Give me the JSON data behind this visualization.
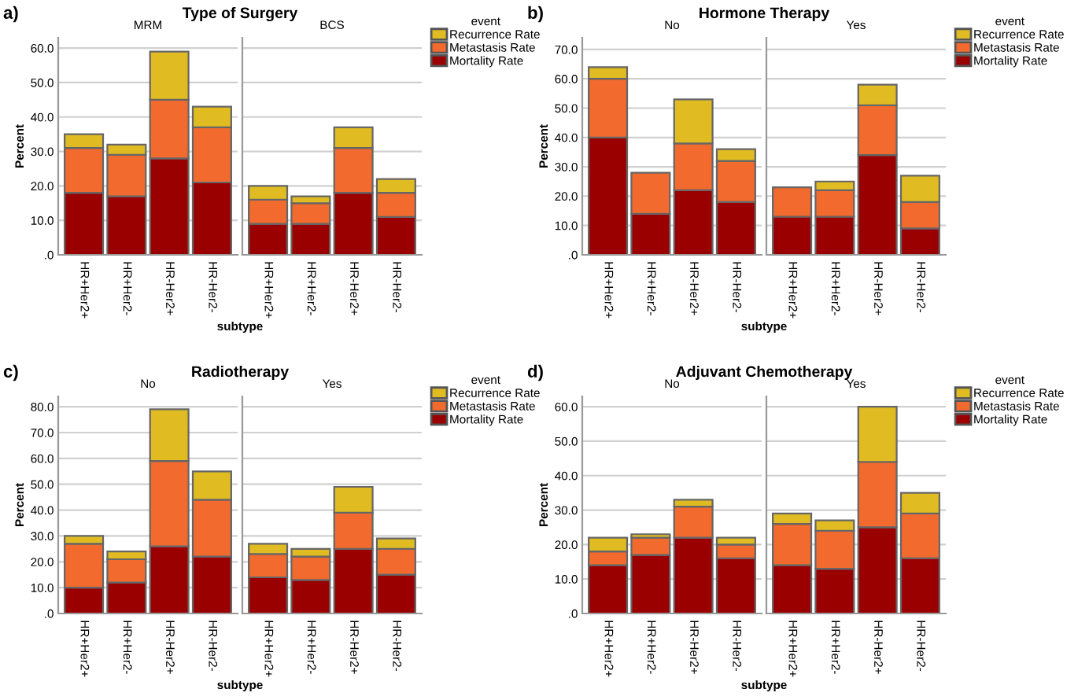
{
  "chart_data": [
    {
      "type": "bar",
      "stacked": true,
      "legend": "right",
      "legend_title": "event",
      "title": "Type of Surgery",
      "subtitle": "MRM",
      "xlabel": "subtype",
      "ylabel": "Percent",
      "annotations": [
        "a)"
      ],
      "categories": [
        "HR+Her2+",
        "HR+Her2-",
        "HR-Her2+",
        "HR-Her2-"
      ],
      "ylim": [
        0,
        63
      ],
      "yticks": [
        {
          "value": 0,
          "label": ".0"
        },
        {
          "value": 10,
          "label": "10.0"
        },
        {
          "value": 20,
          "label": "20.0"
        },
        {
          "value": 30,
          "label": "30.0"
        },
        {
          "value": 40,
          "label": "40.0"
        },
        {
          "value": 50,
          "label": "50.0"
        },
        {
          "value": 60,
          "label": "60.0"
        }
      ],
      "grid": "y",
      "series": [
        {
          "name": "Mortality Rate",
          "color": "#9b0000",
          "values": [
            18,
            17,
            28,
            21
          ]
        },
        {
          "name": "Metastasis Rate",
          "color": "#f26a2e",
          "values": [
            13,
            12,
            17,
            16
          ]
        },
        {
          "name": "Recurrence Rate",
          "color": "#e0bc22",
          "values": [
            4,
            3,
            14,
            6
          ]
        }
      ]
    },
    {
      "type": "bar",
      "stacked": true,
      "subtitle": "BCS",
      "tick_labels": "x",
      "categories": [
        "HR+Her2+",
        "HR+Her2-",
        "HR-Her2+",
        "HR-Her2-"
      ],
      "ylim": [
        0,
        63
      ],
      "yticks": [
        0,
        10,
        20,
        30,
        40,
        50,
        60
      ],
      "grid": "y",
      "series": [
        {
          "color": "#9b0000",
          "values": [
            9,
            9,
            18,
            11
          ]
        },
        {
          "color": "#f26a2e",
          "values": [
            7,
            6,
            13,
            7
          ]
        },
        {
          "color": "#e0bc22",
          "values": [
            4,
            2,
            6,
            4
          ]
        }
      ]
    },
    {
      "type": "bar",
      "stacked": true,
      "legend": "right",
      "legend_title": "event",
      "title": "Hormone Therapy",
      "subtitle": "No",
      "xlabel": "subtype",
      "ylabel": "Percent",
      "annotations": [
        "b)"
      ],
      "categories": [
        "HR+Her2+",
        "HR+Her2-",
        "HR-Her2+",
        "HR-Her2-"
      ],
      "ylim": [
        0,
        74
      ],
      "yticks": [
        {
          "value": 0,
          "label": ".0"
        },
        {
          "value": 10,
          "label": "10.0"
        },
        {
          "value": 20,
          "label": "20.0"
        },
        {
          "value": 30,
          "label": "30.0"
        },
        {
          "value": 40,
          "label": "40.0"
        },
        {
          "value": 50,
          "label": "50.0"
        },
        {
          "value": 60,
          "label": "60.0"
        },
        {
          "value": 70,
          "label": "70.0"
        }
      ],
      "grid": "y",
      "series": [
        {
          "name": "Mortality Rate",
          "color": "#9b0000",
          "values": [
            40,
            14,
            22,
            18
          ]
        },
        {
          "name": "Metastasis Rate",
          "color": "#f26a2e",
          "values": [
            20,
            14,
            16,
            14
          ]
        },
        {
          "name": "Recurrence Rate",
          "color": "#e0bc22",
          "values": [
            4,
            null,
            15,
            4
          ]
        }
      ]
    },
    {
      "type": "bar",
      "stacked": true,
      "subtitle": "Yes",
      "tick_labels": "x",
      "categories": [
        "HR+Her2+",
        "HR+Her2-",
        "HR-Her2+",
        "HR-Her2-"
      ],
      "ylim": [
        0,
        74
      ],
      "yticks": [
        0,
        10,
        20,
        30,
        40,
        50,
        60,
        70
      ],
      "grid": "y",
      "series": [
        {
          "color": "#9b0000",
          "values": [
            13,
            13,
            34,
            9
          ]
        },
        {
          "color": "#f26a2e",
          "values": [
            10,
            9,
            17,
            9
          ]
        },
        {
          "color": "#e0bc22",
          "values": [
            null,
            3,
            7,
            9
          ]
        }
      ]
    },
    {
      "type": "bar",
      "stacked": true,
      "legend": "right",
      "legend_title": "event",
      "title": "Radiotherapy",
      "subtitle": "No",
      "xlabel": "subtype",
      "ylabel": "Percent",
      "annotations": [
        "c)"
      ],
      "categories": [
        "HR+Her2+",
        "HR+Her2-",
        "HR-Her2+",
        "HR-Her2-"
      ],
      "ylim": [
        0,
        84
      ],
      "yticks": [
        {
          "value": 0,
          "label": ".0"
        },
        {
          "value": 10,
          "label": "10.0"
        },
        {
          "value": 20,
          "label": "20.0"
        },
        {
          "value": 30,
          "label": "30.0"
        },
        {
          "value": 40,
          "label": "40.0"
        },
        {
          "value": 50,
          "label": "50.0"
        },
        {
          "value": 60,
          "label": "60.0"
        },
        {
          "value": 70,
          "label": "70.0"
        },
        {
          "value": 80,
          "label": "80.0"
        }
      ],
      "grid": "y",
      "series": [
        {
          "name": "Mortality Rate",
          "color": "#9b0000",
          "values": [
            10,
            12,
            26,
            22
          ]
        },
        {
          "name": "Metastasis Rate",
          "color": "#f26a2e",
          "values": [
            17,
            9,
            33,
            22
          ]
        },
        {
          "name": "Recurrence Rate",
          "color": "#e0bc22",
          "values": [
            3,
            3,
            20,
            11
          ]
        }
      ]
    },
    {
      "type": "bar",
      "stacked": true,
      "subtitle": "Yes",
      "tick_labels": "x",
      "categories": [
        "HR+Her2+",
        "HR+Her2-",
        "HR-Her2+",
        "HR-Her2-"
      ],
      "ylim": [
        0,
        84
      ],
      "yticks": [
        0,
        10,
        20,
        30,
        40,
        50,
        60,
        70,
        80
      ],
      "grid": "y",
      "series": [
        {
          "color": "#9b0000",
          "values": [
            14,
            13,
            25,
            15
          ]
        },
        {
          "color": "#f26a2e",
          "values": [
            9,
            9,
            14,
            10
          ]
        },
        {
          "color": "#e0bc22",
          "values": [
            4,
            3,
            10,
            4
          ]
        }
      ]
    },
    {
      "type": "bar",
      "stacked": true,
      "legend": "right",
      "legend_title": "event",
      "title": "Adjuvant Chemotherapy",
      "subtitle": "No",
      "xlabel": "subtype",
      "ylabel": "Percent",
      "annotations": [
        "d)"
      ],
      "categories": [
        "HR+Her2+",
        "HR+Her2-",
        "HR-Her2+",
        "HR-Her2-"
      ],
      "ylim": [
        0,
        63
      ],
      "yticks": [
        {
          "value": 0,
          "label": ".0"
        },
        {
          "value": 10,
          "label": "10.0"
        },
        {
          "value": 20,
          "label": "20.0"
        },
        {
          "value": 30,
          "label": "30.0"
        },
        {
          "value": 40,
          "label": "40.0"
        },
        {
          "value": 50,
          "label": "50.0"
        },
        {
          "value": 60,
          "label": "60.0"
        }
      ],
      "grid": "y",
      "series": [
        {
          "name": "Mortality Rate",
          "color": "#9b0000",
          "values": [
            14,
            17,
            22,
            16
          ]
        },
        {
          "name": "Metastasis Rate",
          "color": "#f26a2e",
          "values": [
            4,
            5,
            9,
            4
          ]
        },
        {
          "name": "Recurrence Rate",
          "color": "#e0bc22",
          "values": [
            4,
            1,
            2,
            2
          ]
        }
      ]
    },
    {
      "type": "bar",
      "stacked": true,
      "subtitle": "Yes",
      "tick_labels": "x",
      "categories": [
        "HR+Her2+",
        "HR+Her2-",
        "HR-Her2+",
        "HR-Her2-"
      ],
      "ylim": [
        0,
        63
      ],
      "yticks": [
        0,
        10,
        20,
        30,
        40,
        50,
        60
      ],
      "grid": "y",
      "series": [
        {
          "color": "#9b0000",
          "values": [
            14,
            13,
            25,
            16
          ]
        },
        {
          "color": "#f26a2e",
          "values": [
            12,
            11,
            19,
            13
          ]
        },
        {
          "color": "#e0bc22",
          "values": [
            3,
            3,
            16,
            6
          ]
        }
      ]
    }
  ]
}
